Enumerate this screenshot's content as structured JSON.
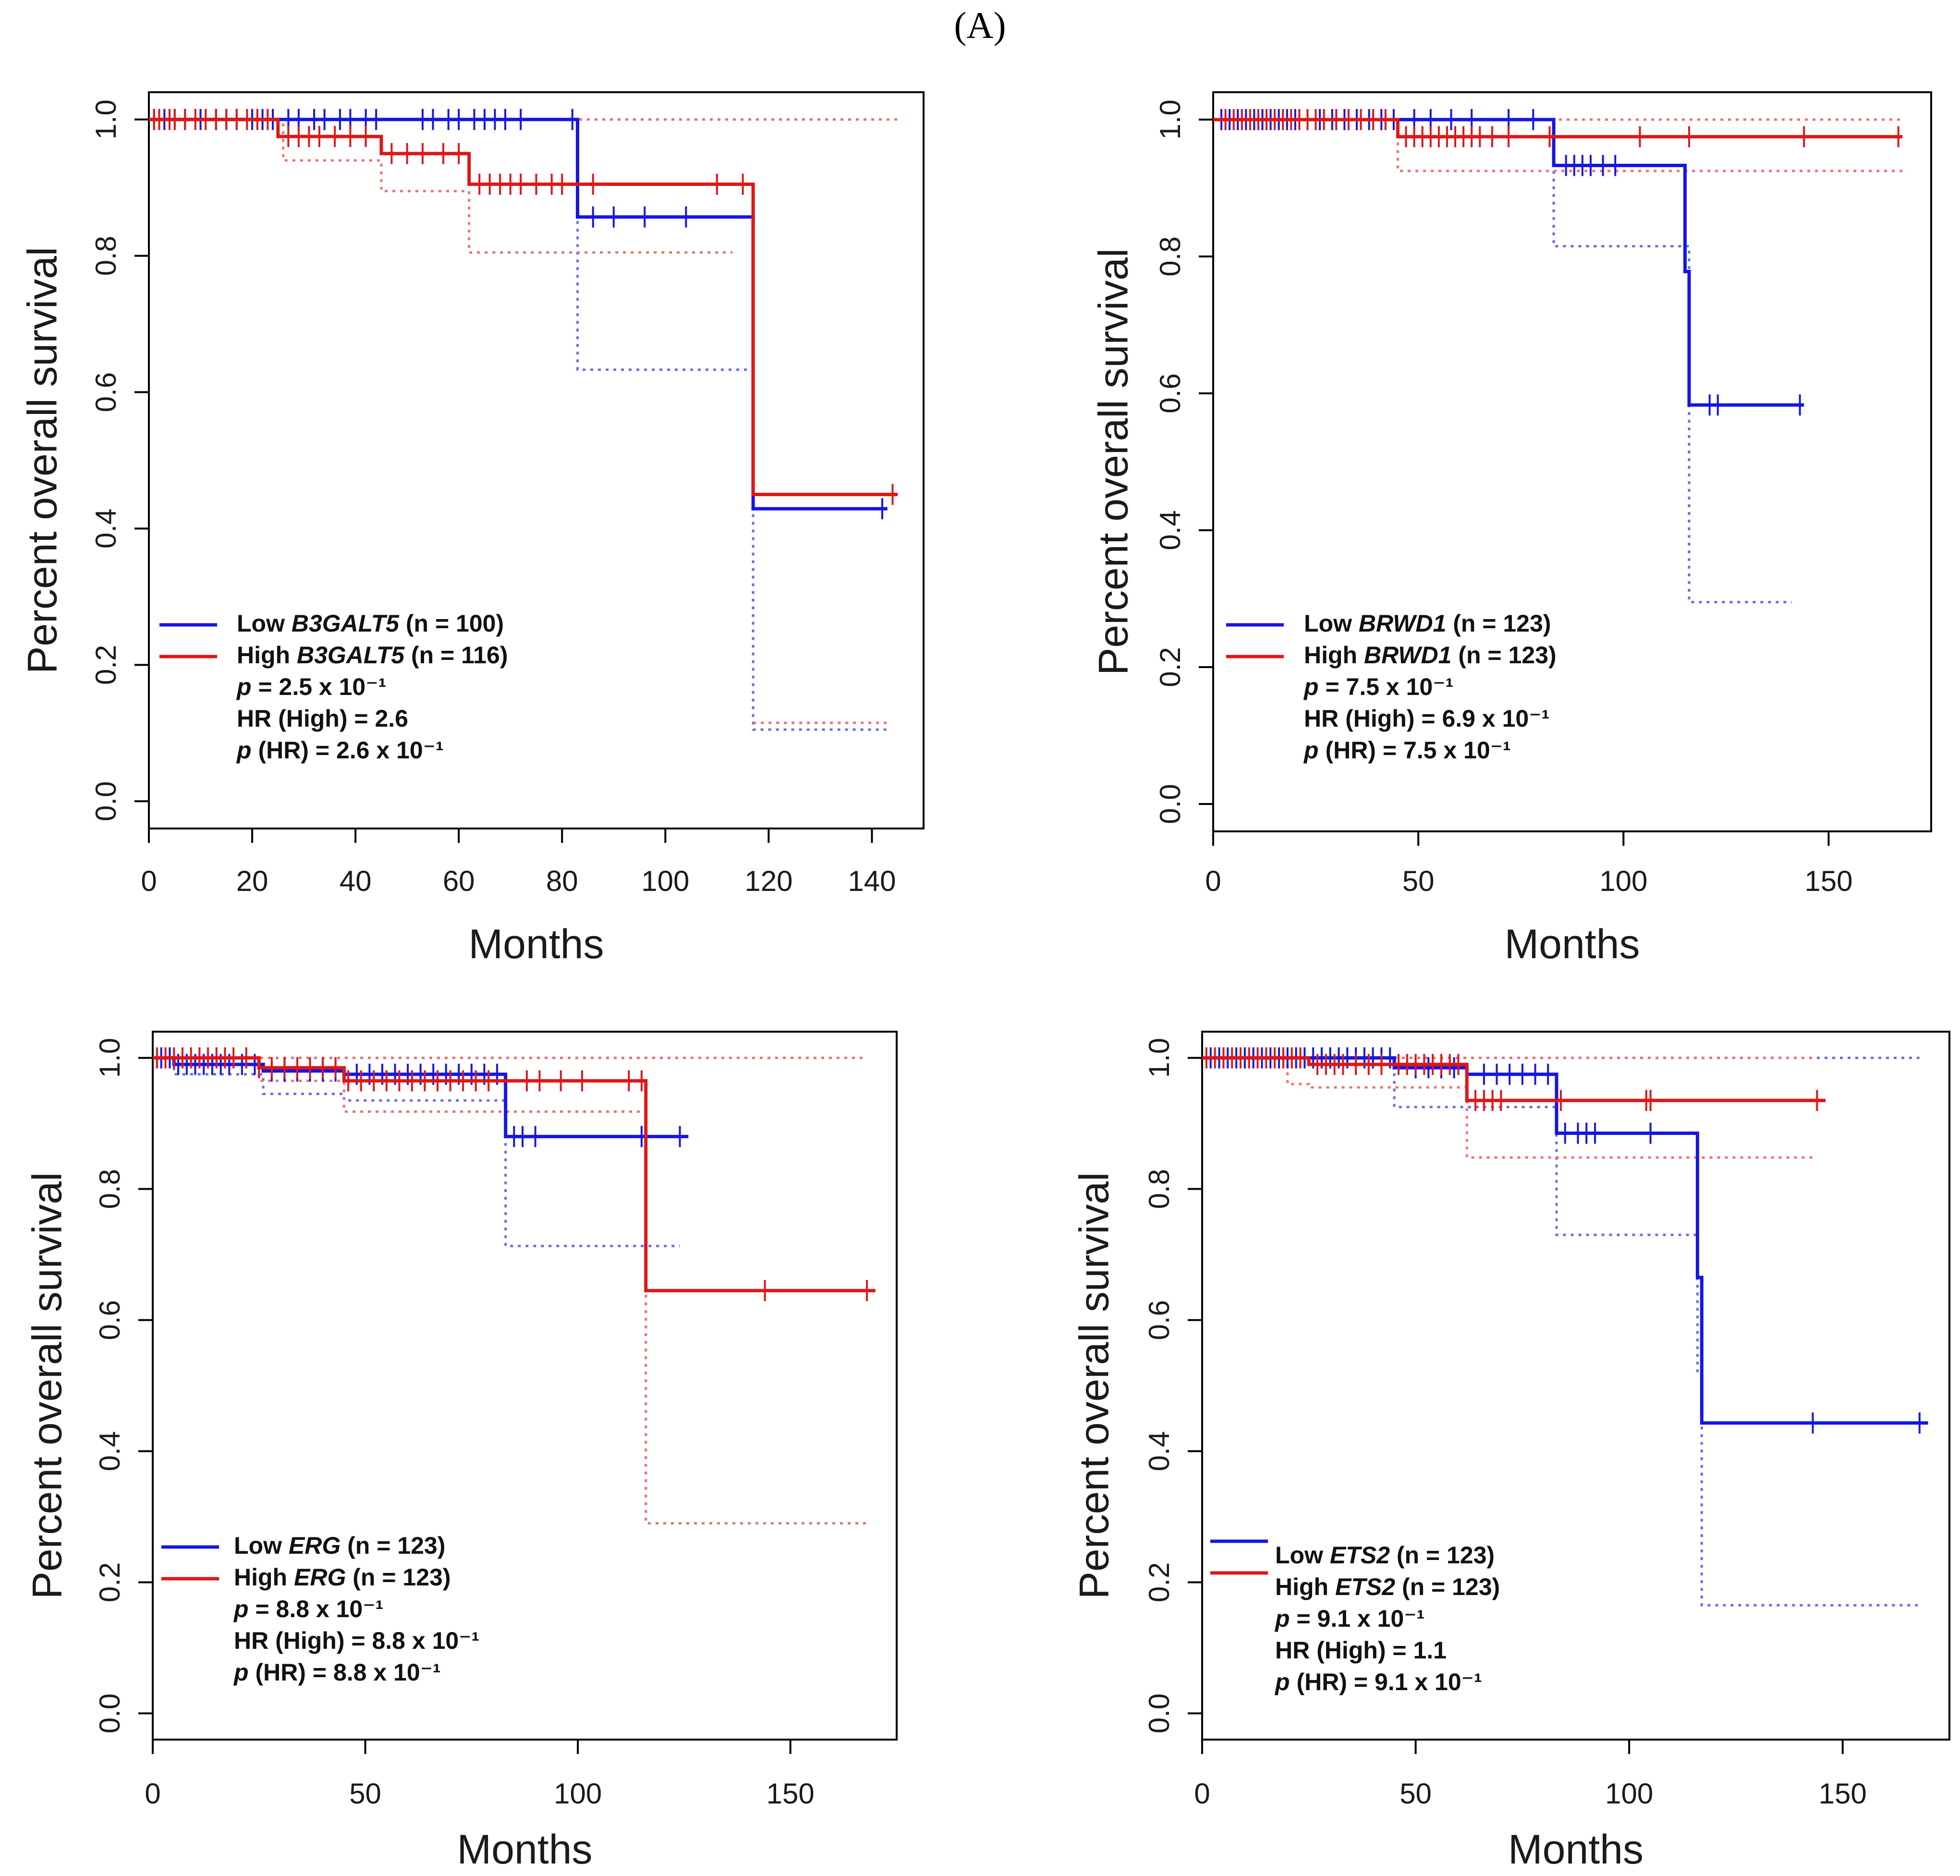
{
  "figure_label": "(A)",
  "colors": {
    "low": "#1515e6",
    "high": "#e01616",
    "low_ci": "#6a6af0",
    "high_ci": "#f07070"
  },
  "chart_data": [
    {
      "type": "line",
      "subtype": "kaplan-meier",
      "gene": "B3GALT5",
      "xlabel": "Months",
      "ylabel": "Percent overall survival",
      "xticks": [
        0,
        20,
        40,
        60,
        80,
        100,
        120,
        140
      ],
      "yticks": [
        0.0,
        0.2,
        0.4,
        0.6,
        0.8,
        1.0
      ],
      "ytick_labels": [
        "0.0",
        "0.2",
        "0.4",
        "0.6",
        "0.8",
        "1.0"
      ],
      "xlim": [
        0,
        150
      ],
      "ylim": [
        -0.04,
        1.04
      ],
      "legend_position": "bottom-left",
      "legend": {
        "low": [
          "Low ",
          "B3GALT5",
          " (n = 100)"
        ],
        "high": [
          "High ",
          "B3GALT5",
          " (n = 116)"
        ],
        "p": [
          "p",
          " = 2.5 x 10⁻¹"
        ],
        "hr": "HR (High) = 2.6",
        "p_hr": [
          "p",
          " (HR) = 2.6 x 10⁻¹"
        ]
      },
      "series": [
        {
          "name": "Low",
          "kind": "low",
          "end": 143,
          "steps": [
            [
              0,
              1.0
            ],
            [
              83,
              0.857
            ],
            [
              117,
              0.429
            ]
          ],
          "censors": [
            1,
            3,
            5,
            7,
            10,
            13,
            15,
            17,
            20,
            22,
            24,
            27,
            29,
            32,
            34,
            37,
            39,
            42,
            44,
            53,
            55,
            58,
            60,
            63,
            65,
            67,
            69,
            72,
            82,
            86,
            90,
            96,
            104,
            142
          ]
        },
        {
          "name": "High",
          "kind": "high",
          "end": 145,
          "steps": [
            [
              0,
              1.0
            ],
            [
              25,
              0.975
            ],
            [
              45,
              0.95
            ],
            [
              62,
              0.905
            ],
            [
              117,
              0.45
            ]
          ],
          "censors": [
            1,
            2,
            4,
            5,
            7,
            9,
            11,
            13,
            15,
            17,
            19,
            21,
            23,
            27,
            29,
            31,
            33,
            36,
            39,
            42,
            47,
            50,
            53,
            57,
            60,
            64,
            66,
            68,
            70,
            72,
            75,
            78,
            80,
            86,
            110,
            115,
            144
          ]
        },
        {
          "name": "Low CI lower",
          "kind": "low_ci",
          "end": 143,
          "steps": [
            [
              0,
              1.0
            ],
            [
              83,
              0.633
            ],
            [
              117,
              0.105
            ]
          ]
        },
        {
          "name": "Low CI upper",
          "kind": "low_ci",
          "end": 143,
          "steps": [
            [
              0,
              1.0
            ]
          ]
        },
        {
          "name": "High CI lower",
          "kind": "high_ci",
          "end": 113,
          "steps": [
            [
              0,
              1.0
            ],
            [
              26,
              0.94
            ],
            [
              45,
              0.895
            ],
            [
              62,
              0.805
            ]
          ]
        },
        {
          "name": "High CI lower tail",
          "kind": "high_ci",
          "start": 117,
          "end": 143,
          "steps": [
            [
              117,
              0.115
            ]
          ]
        },
        {
          "name": "High CI upper",
          "kind": "high_ci",
          "end": 145,
          "steps": [
            [
              0,
              1.0
            ]
          ]
        }
      ]
    },
    {
      "type": "line",
      "subtype": "kaplan-meier",
      "gene": "BRWD1",
      "xlabel": "Months",
      "ylabel": "Percent overall survival",
      "xticks": [
        0,
        50,
        100,
        150
      ],
      "yticks": [
        0.0,
        0.2,
        0.4,
        0.6,
        0.8,
        1.0
      ],
      "ytick_labels": [
        "0.0",
        "0.2",
        "0.4",
        "0.6",
        "0.8",
        "1.0"
      ],
      "xlim": [
        0,
        175
      ],
      "ylim": [
        -0.04,
        1.04
      ],
      "legend_position": "bottom-left",
      "legend": {
        "low": [
          "Low ",
          "BRWD1",
          " (n = 123)"
        ],
        "high": [
          "High ",
          "BRWD1",
          " (n = 123)"
        ],
        "p": [
          "p",
          " = 7.5 x 10⁻¹"
        ],
        "hr": "HR (High) = 6.9 x 10⁻¹",
        "p_hr": [
          "p",
          " (HR) = 7.5 x 10⁻¹"
        ]
      },
      "series": [
        {
          "name": "Low",
          "kind": "low",
          "end": 144,
          "steps": [
            [
              0,
              1.0
            ],
            [
              83,
              0.933
            ],
            [
              115,
              0.778
            ],
            [
              116,
              0.583
            ]
          ],
          "censors": [
            2,
            4,
            6,
            8,
            10,
            12,
            14,
            16,
            18,
            20,
            23,
            26,
            29,
            32,
            35,
            38,
            41,
            44,
            49,
            53,
            58,
            63,
            72,
            78,
            86,
            88,
            90,
            92,
            95,
            98,
            121,
            123,
            143
          ]
        },
        {
          "name": "High",
          "kind": "high",
          "end": 168,
          "steps": [
            [
              0,
              1.0
            ],
            [
              45,
              0.975
            ]
          ],
          "censors": [
            3,
            5,
            7,
            9,
            11,
            13,
            15,
            17,
            19,
            21,
            23,
            25,
            27,
            30,
            33,
            36,
            39,
            42,
            47,
            49,
            51,
            53,
            55,
            57,
            59,
            61,
            63,
            65,
            68,
            72,
            82,
            104,
            116,
            144,
            167
          ]
        },
        {
          "name": "Low CI lower",
          "kind": "low_ci",
          "end": 141,
          "steps": [
            [
              0,
              1.0
            ],
            [
              83,
              0.815
            ],
            [
              116,
              0.295
            ]
          ]
        },
        {
          "name": "Low CI upper",
          "kind": "low_ci",
          "end": 168,
          "steps": [
            [
              0,
              1.0
            ]
          ]
        },
        {
          "name": "High CI lower",
          "kind": "high_ci",
          "end": 168,
          "steps": [
            [
              0,
              1.0
            ],
            [
              45,
              0.925
            ]
          ]
        },
        {
          "name": "High CI upper",
          "kind": "high_ci",
          "end": 168,
          "steps": [
            [
              0,
              1.0
            ]
          ]
        }
      ]
    },
    {
      "type": "line",
      "subtype": "kaplan-meier",
      "gene": "ERG",
      "xlabel": "Months",
      "ylabel": "Percent overall survival",
      "xticks": [
        0,
        50,
        100,
        150
      ],
      "yticks": [
        0.0,
        0.2,
        0.4,
        0.6,
        0.8,
        1.0
      ],
      "ytick_labels": [
        "0.0",
        "0.2",
        "0.4",
        "0.6",
        "0.8",
        "1.0"
      ],
      "xlim": [
        0,
        175
      ],
      "ylim": [
        -0.04,
        1.04
      ],
      "legend_position": "bottom-left",
      "legend": {
        "low": [
          "Low ",
          "ERG",
          " (n = 123)"
        ],
        "high": [
          "High ",
          "ERG",
          " (n = 123)"
        ],
        "p": [
          "p",
          " = 8.8 x 10⁻¹"
        ],
        "hr": "HR (High) = 8.8 x 10⁻¹",
        "p_hr": [
          "p",
          " (HR) = 8.8 x 10⁻¹"
        ]
      },
      "series": [
        {
          "name": "Low",
          "kind": "low",
          "end": 126,
          "steps": [
            [
              0,
              1.0
            ],
            [
              5,
              0.99
            ],
            [
              26,
              0.98
            ],
            [
              45,
              0.975
            ],
            [
              83,
              0.88
            ]
          ],
          "censors": [
            2,
            4,
            6,
            8,
            10,
            12,
            14,
            16,
            18,
            21,
            24,
            28,
            31,
            34,
            37,
            40,
            43,
            48,
            51,
            54,
            57,
            60,
            63,
            66,
            69,
            72,
            75,
            78,
            81,
            85,
            87,
            90,
            115,
            124
          ]
        },
        {
          "name": "High",
          "kind": "high",
          "end": 170,
          "steps": [
            [
              0,
              1.0
            ],
            [
              25,
              0.985
            ],
            [
              45,
              0.965
            ],
            [
              116,
              0.645
            ]
          ],
          "censors": [
            1,
            3,
            5,
            7,
            9,
            11,
            13,
            15,
            17,
            19,
            22,
            25,
            28,
            31,
            34,
            37,
            40,
            43,
            46,
            49,
            52,
            55,
            58,
            61,
            64,
            67,
            70,
            73,
            76,
            79,
            88,
            91,
            96,
            101,
            112,
            115,
            144,
            168
          ]
        },
        {
          "name": "Low CI lower",
          "kind": "low_ci",
          "end": 124,
          "steps": [
            [
              0,
              1.0
            ],
            [
              5,
              0.975
            ],
            [
              26,
              0.945
            ],
            [
              45,
              0.935
            ],
            [
              83,
              0.713
            ]
          ]
        },
        {
          "name": "Low CI upper",
          "kind": "low_ci",
          "end": 124,
          "steps": [
            [
              0,
              1.0
            ]
          ]
        },
        {
          "name": "High CI lower",
          "kind": "high_ci",
          "end": 168,
          "steps": [
            [
              0,
              1.0
            ],
            [
              25,
              0.965
            ],
            [
              45,
              0.918
            ],
            [
              116,
              0.29
            ]
          ]
        },
        {
          "name": "High CI upper",
          "kind": "high_ci",
          "end": 168,
          "steps": [
            [
              0,
              1.0
            ]
          ]
        }
      ]
    },
    {
      "type": "line",
      "subtype": "kaplan-meier",
      "gene": "ETS2",
      "xlabel": "Months",
      "ylabel": "Percent overall survival",
      "xticks": [
        0,
        50,
        100,
        150
      ],
      "yticks": [
        0.0,
        0.2,
        0.4,
        0.6,
        0.8,
        1.0
      ],
      "ytick_labels": [
        "0.0",
        "0.2",
        "0.4",
        "0.6",
        "0.8",
        "1.0"
      ],
      "xlim": [
        0,
        175
      ],
      "ylim": [
        -0.04,
        1.04
      ],
      "legend_position": "bottom-left",
      "legend": {
        "low": [
          "Low ",
          "ETS2",
          " (n = 123)"
        ],
        "high": [
          "High ",
          "ETS2",
          " (n = 123)"
        ],
        "p": [
          "p",
          " = 9.1 x 10⁻¹"
        ],
        "hr": "HR (High) = 1.1",
        "p_hr": [
          "p",
          " (HR) = 9.1 x 10⁻¹"
        ]
      },
      "series": [
        {
          "name": "Low",
          "kind": "low",
          "end": 170,
          "steps": [
            [
              0,
              1.0
            ],
            [
              45,
              0.985
            ],
            [
              62,
              0.975
            ],
            [
              83,
              0.885
            ],
            [
              116,
              0.665
            ],
            [
              117,
              0.443
            ]
          ],
          "censors": [
            2,
            4,
            6,
            8,
            10,
            12,
            14,
            16,
            18,
            20,
            22,
            24,
            26,
            28,
            30,
            32,
            34,
            36,
            38,
            40,
            42,
            44,
            50,
            53,
            56,
            59,
            66,
            69,
            72,
            75,
            78,
            81,
            85,
            88,
            90,
            92,
            105,
            143,
            168
          ]
        },
        {
          "name": "High",
          "kind": "high",
          "end": 146,
          "steps": [
            [
              0,
              1.0
            ],
            [
              25,
              0.99
            ],
            [
              62,
              0.935
            ]
          ],
          "censors": [
            1,
            3,
            5,
            7,
            9,
            11,
            13,
            15,
            17,
            19,
            21,
            23,
            27,
            29,
            31,
            33,
            36,
            39,
            42,
            46,
            48,
            50,
            52,
            54,
            56,
            58,
            60,
            64,
            66,
            68,
            70,
            84,
            104,
            105,
            144
          ]
        },
        {
          "name": "Low CI lower",
          "kind": "low_ci",
          "end": 168,
          "steps": [
            [
              0,
              1.0
            ],
            [
              45,
              0.925
            ],
            [
              83,
              0.73
            ],
            [
              116,
              0.52
            ],
            [
              117,
              0.165
            ]
          ]
        },
        {
          "name": "Low CI upper",
          "kind": "low_ci",
          "end": 168,
          "steps": [
            [
              0,
              1.0
            ]
          ]
        },
        {
          "name": "High CI lower",
          "kind": "high_ci",
          "end": 143,
          "steps": [
            [
              0,
              1.0
            ],
            [
              20,
              0.96
            ],
            [
              25,
              0.955
            ],
            [
              62,
              0.848
            ]
          ]
        },
        {
          "name": "High CI upper",
          "kind": "high_ci",
          "end": 144,
          "steps": [
            [
              0,
              1.0
            ]
          ]
        }
      ]
    }
  ]
}
